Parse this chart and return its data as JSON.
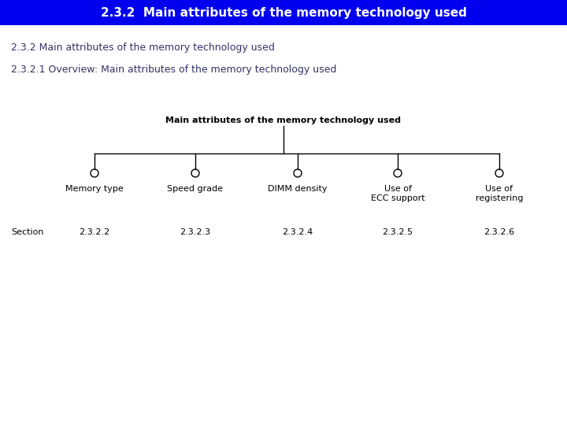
{
  "title_bar_text": "2.3.2  Main attributes of the memory technology used",
  "title_bar_bg": "#0000EE",
  "title_bar_text_color": "#FFFFFF",
  "subtitle1": "2.3.2 Main attributes of the memory technology used",
  "subtitle2": "2.3.2.1 Overview: Main attributes of the memory technology used",
  "subtitle1_color": "#333366",
  "subtitle2_color": "#333366",
  "tree_root_label": "Main attributes of the memory technology used",
  "branches": [
    {
      "label": "Memory type",
      "section": "2.3.2.2"
    },
    {
      "label": "Speed grade",
      "section": "2.3.2.3"
    },
    {
      "label": "DIMM density",
      "section": "2.3.2.4"
    },
    {
      "label": "Use of\nECC support",
      "section": "2.3.2.5"
    },
    {
      "label": "Use of\nregistering",
      "section": "2.3.2.6"
    }
  ],
  "section_label": "Section",
  "background_color": "#FFFFFF",
  "line_color": "#000000",
  "text_color": "#000000",
  "title_fontsize": 11,
  "subtitle_fontsize": 9,
  "tree_fontsize": 8,
  "section_fontsize": 8
}
